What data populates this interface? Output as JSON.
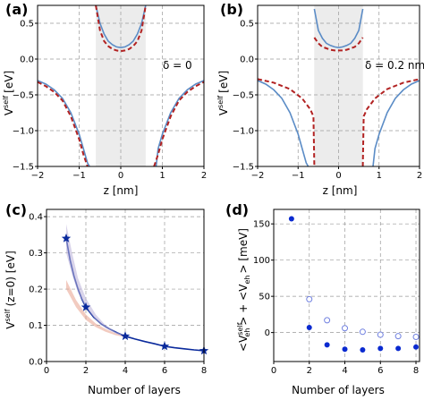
{
  "chart_data": [
    {
      "type": "line",
      "panel_label": "(a)",
      "annotation": "δ = 0",
      "xlabel_text": "z [nm]",
      "ylabel_main": "V",
      "ylabel_sup": "self",
      "ylabel_unit": "[eV]",
      "xlim": [
        -2,
        2
      ],
      "ylim": [
        -1.5,
        0.75
      ],
      "xticks": [
        "−2",
        "−1",
        "0",
        "1",
        "2"
      ],
      "xtick_values": [
        -2,
        -1,
        0,
        1,
        2
      ],
      "yticks": [
        "0.5",
        "0.0",
        "−0.5",
        "−1.0",
        "−1.5"
      ],
      "ytick_values": [
        0.5,
        0.0,
        -0.5,
        -1.0,
        -1.5
      ],
      "shaded_region": [
        -0.6,
        0.6
      ],
      "grid": "dashed",
      "series": [
        {
          "style": "solid",
          "color": "#5b8cc6",
          "inside": {
            "z": [
              -0.6,
              -0.5,
              -0.4,
              -0.3,
              -0.2,
              -0.1,
              0,
              0.1,
              0.2,
              0.3,
              0.4,
              0.5,
              0.6
            ],
            "v": [
              0.75,
              0.5,
              0.35,
              0.25,
              0.2,
              0.17,
              0.16,
              0.17,
              0.2,
              0.25,
              0.35,
              0.5,
              0.75
            ]
          },
          "left": {
            "z": [
              -2,
              -1.8,
              -1.6,
              -1.4,
              -1.2,
              -1.0,
              -0.9,
              -0.8,
              -0.75
            ],
            "v": [
              -0.3,
              -0.35,
              -0.43,
              -0.55,
              -0.75,
              -1.05,
              -1.25,
              -1.45,
              -1.5
            ]
          },
          "right": {
            "z": [
              0.85,
              0.9,
              1.0,
              1.2,
              1.4,
              1.6,
              1.8,
              2.0
            ],
            "v": [
              -1.5,
              -1.25,
              -1.05,
              -0.75,
              -0.55,
              -0.43,
              -0.35,
              -0.3
            ]
          }
        },
        {
          "style": "dashed",
          "color": "#b22222",
          "inside": {
            "z": [
              -0.6,
              -0.5,
              -0.4,
              -0.3,
              -0.2,
              -0.1,
              0,
              0.1,
              0.2,
              0.3,
              0.4,
              0.5,
              0.6
            ],
            "v": [
              0.75,
              0.4,
              0.25,
              0.18,
              0.14,
              0.12,
              0.11,
              0.12,
              0.14,
              0.18,
              0.25,
              0.4,
              0.75
            ]
          },
          "left": {
            "z": [
              -2,
              -1.8,
              -1.6,
              -1.4,
              -1.2,
              -1.0,
              -0.9,
              -0.8
            ],
            "v": [
              -0.32,
              -0.38,
              -0.46,
              -0.58,
              -0.8,
              -1.12,
              -1.33,
              -1.5
            ]
          },
          "right": {
            "z": [
              0.8,
              0.9,
              1.0,
              1.2,
              1.4,
              1.6,
              1.8,
              2.0
            ],
            "v": [
              -1.5,
              -1.33,
              -1.12,
              -0.8,
              -0.58,
              -0.46,
              -0.38,
              -0.32
            ]
          }
        }
      ]
    },
    {
      "type": "line",
      "panel_label": "(b)",
      "annotation": "δ = 0.2 nm",
      "xlabel_text": "z [nm]",
      "ylabel_main": "V",
      "ylabel_sup": "self",
      "ylabel_unit": "[eV]",
      "xlim": [
        -2,
        2
      ],
      "ylim": [
        -1.5,
        0.75
      ],
      "xticks": [
        "−2",
        "−1",
        "0",
        "1",
        "2"
      ],
      "xtick_values": [
        -2,
        -1,
        0,
        1,
        2
      ],
      "yticks": [
        "0.5",
        "0.0",
        "−0.5",
        "−1.0",
        "−1.5"
      ],
      "ytick_values": [
        0.5,
        0.0,
        -0.5,
        -1.0,
        -1.5
      ],
      "shaded_region": [
        -0.6,
        0.6
      ],
      "grid": "dashed",
      "series": [
        {
          "style": "solid",
          "color": "#5b8cc6",
          "inside": {
            "z": [
              -0.6,
              -0.5,
              -0.4,
              -0.3,
              -0.2,
              -0.1,
              0,
              0.1,
              0.2,
              0.3,
              0.4,
              0.5,
              0.6
            ],
            "v": [
              0.7,
              0.4,
              0.29,
              0.22,
              0.19,
              0.17,
              0.16,
              0.17,
              0.19,
              0.22,
              0.29,
              0.4,
              0.7
            ]
          },
          "left": {
            "z": [
              -2,
              -1.8,
              -1.6,
              -1.4,
              -1.2,
              -1.0,
              -0.9,
              -0.8,
              -0.75
            ],
            "v": [
              -0.3,
              -0.35,
              -0.43,
              -0.55,
              -0.75,
              -1.05,
              -1.25,
              -1.45,
              -1.5
            ]
          },
          "right": {
            "z": [
              0.85,
              0.9,
              1.0,
              1.2,
              1.4,
              1.6,
              1.8,
              2.0
            ],
            "v": [
              -1.5,
              -1.25,
              -1.05,
              -0.75,
              -0.55,
              -0.43,
              -0.35,
              -0.3
            ]
          }
        },
        {
          "style": "dashed",
          "color": "#b22222",
          "inside": {
            "z": [
              -0.6,
              -0.5,
              -0.4,
              -0.3,
              -0.2,
              -0.1,
              0,
              0.1,
              0.2,
              0.3,
              0.4,
              0.5,
              0.6
            ],
            "v": [
              0.3,
              0.22,
              0.17,
              0.15,
              0.13,
              0.12,
              0.12,
              0.12,
              0.13,
              0.15,
              0.17,
              0.22,
              0.3
            ]
          },
          "left": {
            "z": [
              -2,
              -1.6,
              -1.2,
              -0.9,
              -0.7,
              -0.62,
              -0.6
            ],
            "v": [
              -0.28,
              -0.33,
              -0.42,
              -0.55,
              -0.7,
              -0.8,
              -1.5
            ]
          },
          "right": {
            "z": [
              0.6,
              0.62,
              0.7,
              0.9,
              1.2,
              1.6,
              2.0
            ],
            "v": [
              -1.5,
              -0.8,
              -0.7,
              -0.55,
              -0.42,
              -0.33,
              -0.28
            ]
          }
        }
      ]
    },
    {
      "type": "line",
      "panel_label": "(c)",
      "xlabel_text": "Number of layers",
      "ylabel_main": "V",
      "ylabel_sup": "self",
      "ylabel_unit": "(z=0) [eV]",
      "xlim": [
        0,
        8
      ],
      "ylim": [
        0,
        0.42
      ],
      "xticks": [
        "0",
        "2",
        "4",
        "6",
        "8"
      ],
      "xtick_values": [
        0,
        2,
        4,
        6,
        8
      ],
      "yticks": [
        "0.4",
        "0.3",
        "0.2",
        "0.1",
        "0.0"
      ],
      "ytick_values": [
        0.4,
        0.3,
        0.2,
        0.1,
        0.0
      ],
      "grid": "dashed",
      "series": [
        {
          "style": "solid-star",
          "color": "#0a2a9c",
          "x": [
            1,
            2,
            4,
            6,
            8
          ],
          "y": [
            0.34,
            0.15,
            0.07,
            0.042,
            0.03
          ],
          "curve_x": [
            1,
            1.2,
            1.4,
            1.6,
            1.8,
            2,
            2.4,
            2.8,
            3.2,
            3.6,
            4,
            4.5,
            5,
            5.5,
            6,
            6.5,
            7,
            7.5,
            8
          ],
          "curve_y": [
            0.34,
            0.28,
            0.235,
            0.2,
            0.172,
            0.15,
            0.122,
            0.103,
            0.09,
            0.079,
            0.07,
            0.062,
            0.055,
            0.049,
            0.042,
            0.038,
            0.035,
            0.032,
            0.03
          ]
        },
        {
          "style": "band",
          "color": "#e8a08c",
          "upper_x": [
            1,
            1.5,
            2,
            2.5,
            3,
            3.5,
            4
          ],
          "upper_y": [
            0.225,
            0.17,
            0.13,
            0.105,
            0.09,
            0.078,
            0.07
          ],
          "lower_x": [
            1,
            1.5,
            2,
            2.5,
            3,
            3.5,
            4
          ],
          "lower_y": [
            0.2,
            0.15,
            0.115,
            0.095,
            0.082,
            0.073,
            0.067
          ]
        },
        {
          "style": "band",
          "color": "#b9b0d8",
          "upper_x": [
            1,
            1.3,
            1.6,
            2,
            2.5,
            3,
            3.5,
            4
          ],
          "upper_y": [
            0.38,
            0.3,
            0.23,
            0.175,
            0.13,
            0.1,
            0.082,
            0.072
          ],
          "lower_x": [
            1,
            1.3,
            1.6,
            2,
            2.5,
            3,
            3.5,
            4
          ],
          "lower_y": [
            0.3,
            0.24,
            0.19,
            0.15,
            0.115,
            0.092,
            0.078,
            0.068
          ]
        }
      ]
    },
    {
      "type": "scatter",
      "panel_label": "(d)",
      "xlabel_text": "Number of layers",
      "ylabel_parts": [
        "<V",
        "self",
        "eh",
        "> + <V",
        "eh",
        "> [meV]"
      ],
      "xlim": [
        0,
        8.2
      ],
      "ylim": [
        -40,
        170
      ],
      "xticks": [
        "0",
        "2",
        "4",
        "6",
        "8"
      ],
      "xtick_values": [
        0,
        2,
        4,
        6,
        8
      ],
      "yticks": [
        "150",
        "100",
        "50",
        "0"
      ],
      "ytick_values": [
        150,
        100,
        50,
        0
      ],
      "grid": "dashed",
      "series": [
        {
          "style": "filled",
          "color": "#0a2ad0",
          "x": [
            1,
            2,
            3,
            4,
            5,
            6,
            7,
            8
          ],
          "y": [
            157,
            7,
            -17,
            -23,
            -24,
            -22,
            -22,
            -20
          ]
        },
        {
          "style": "open",
          "color": "#7080e0",
          "x": [
            2,
            3,
            4,
            5,
            6,
            7,
            8
          ],
          "y": [
            46,
            17,
            6,
            1,
            -3,
            -5,
            -6
          ]
        }
      ]
    }
  ]
}
